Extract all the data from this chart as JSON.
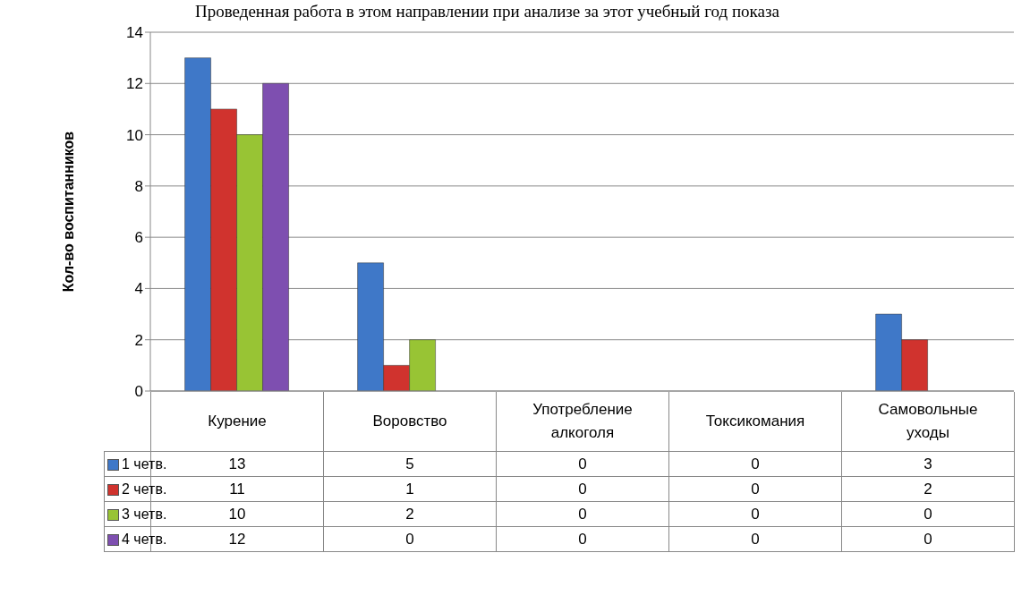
{
  "chart_data": {
    "type": "bar",
    "ylabel": "Кол-во воспитанников",
    "annotations": [
      "Проведенная работа в этом направлении при анализе за этот учебный год показа"
    ],
    "categories": [
      "Курение",
      "Воровство",
      "Употребление алкоголя",
      "Токсикомания",
      "Самовольные уходы"
    ],
    "series": [
      {
        "name": "1 четв.",
        "color": "#3f78c8",
        "values": [
          13,
          5,
          0,
          0,
          3
        ]
      },
      {
        "name": "2 четв.",
        "color": "#d0332e",
        "values": [
          11,
          1,
          0,
          0,
          2
        ]
      },
      {
        "name": "3 четв.",
        "color": "#98c434",
        "values": [
          10,
          2,
          0,
          0,
          0
        ]
      },
      {
        "name": "4 четв.",
        "color": "#7e4fb0",
        "values": [
          12,
          0,
          0,
          0,
          0
        ]
      }
    ],
    "ylim": [
      0,
      14
    ],
    "yticks": [
      0,
      2,
      4,
      6,
      8,
      10,
      12,
      14
    ],
    "grid": "y",
    "legend": "bottom left",
    "data_labels": true
  }
}
